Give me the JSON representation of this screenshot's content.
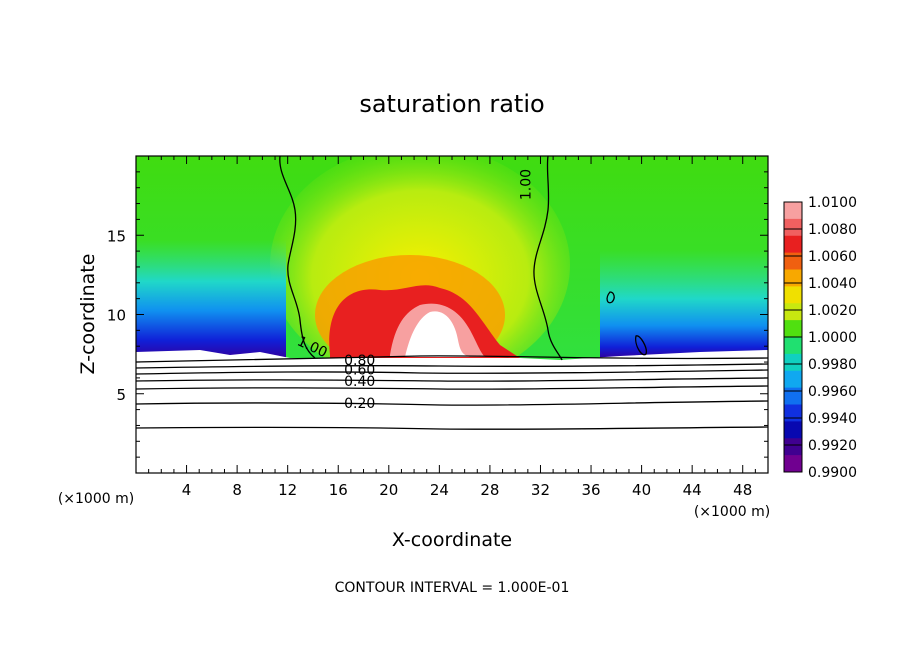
{
  "chart_data": {
    "type": "heatmap",
    "title": "saturation ratio",
    "xlabel": "X-coordinate",
    "ylabel": "Z-coordinate",
    "x_unit": "(×1000 m)",
    "xlim": [
      0,
      50
    ],
    "ylim": [
      0,
      20
    ],
    "xticks": [
      4,
      8,
      12,
      16,
      20,
      24,
      28,
      32,
      36,
      40,
      44,
      48
    ],
    "yticks": [
      5,
      10,
      15
    ],
    "footnote": "CONTOUR INTERVAL = 1.000E-01",
    "colorbar": {
      "levels": [
        "1.0100",
        "1.0080",
        "1.0060",
        "1.0040",
        "1.0020",
        "1.0000",
        "0.9980",
        "0.9960",
        "0.9940",
        "0.9920",
        "0.9900"
      ],
      "colors": [
        "#f7a0a0",
        "#f06060",
        "#e82020",
        "#f06010",
        "#f8a800",
        "#f0e000",
        "#c8e810",
        "#50e010",
        "#20e070",
        "#10d0c0",
        "#10a8f0",
        "#1070f0",
        "#1030e0",
        "#0808b0",
        "#400090",
        "#700090"
      ]
    },
    "contour_labels": [
      {
        "text": "1.00",
        "x": 31.2,
        "y": 18.2
      },
      {
        "text": "1.00",
        "x": 13.8,
        "y": 7.7
      },
      {
        "text": "0.80",
        "x": 17.7,
        "y": 6.8
      },
      {
        "text": "0.60",
        "x": 17.7,
        "y": 6.2
      },
      {
        "text": "0.40",
        "x": 17.7,
        "y": 5.5
      },
      {
        "text": "0.20",
        "x": 17.7,
        "y": 4.1
      }
    ]
  }
}
